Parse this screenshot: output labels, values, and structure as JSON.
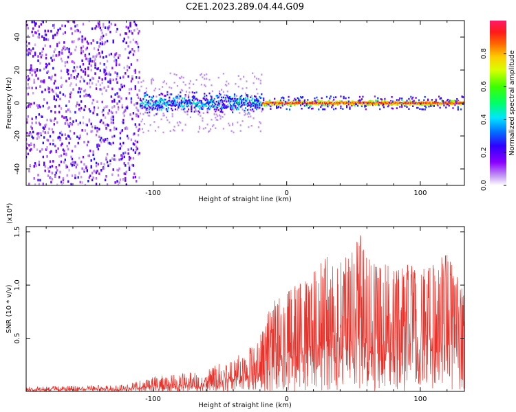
{
  "figure_title": "C2E1.2023.289.04.44.G09",
  "chart_data": [
    {
      "type": "heatmap",
      "title": "C2E1.2023.289.04.44.G09",
      "xlabel": "Height of straight line (km)",
      "ylabel": "Frequency (Hz)",
      "xlim": [
        -195,
        133
      ],
      "ylim": [
        -50,
        50
      ],
      "x_ticks": [
        -100,
        0,
        100
      ],
      "x_tick_labels": [
        "-100",
        "0",
        "100"
      ],
      "y_ticks": [
        -40,
        -20,
        0,
        20,
        40
      ],
      "y_tick_labels": [
        "-40",
        "-20",
        "0",
        "20",
        "40"
      ],
      "grid": false,
      "colorbar": {
        "label": "Normalized spectral amplitude",
        "range": [
          0,
          1
        ],
        "ticks": [
          0.0,
          0.2,
          0.4,
          0.6,
          0.8
        ],
        "tick_labels": [
          "0.0",
          "0.2",
          "0.4",
          "0.6",
          "0.8"
        ],
        "colormap": "rainbow-white-to-magenta"
      },
      "regions": [
        {
          "x_from": -195,
          "x_to": -110,
          "freq_spread_hz": 50,
          "typical_amplitude": 0.15,
          "description": "broadband noise"
        },
        {
          "x_from": -110,
          "x_to": -18,
          "freq_center_hz": 0,
          "freq_spread_hz": 8,
          "typical_amplitude": 0.35
        },
        {
          "x_from": -18,
          "x_to": 133,
          "freq_center_hz": 0,
          "freq_spread_hz": 2,
          "typical_amplitude": 0.95
        }
      ]
    },
    {
      "type": "line",
      "xlabel": "Height of straight line (km)",
      "ylabel": "SNR (10 * v/v)",
      "y_multiplier_label": "(x10⁴)",
      "xlim": [
        -195,
        133
      ],
      "ylim": [
        0,
        15500
      ],
      "x_ticks": [
        -100,
        0,
        100
      ],
      "x_tick_labels": [
        "-100",
        "0",
        "100"
      ],
      "y_ticks": [
        5000,
        10000,
        15000
      ],
      "y_tick_labels": [
        "0.5",
        "1.0",
        "1.5"
      ],
      "grid": false,
      "color": "#e8322a",
      "envelope": {
        "x": [
          -195,
          -150,
          -120,
          -100,
          -80,
          -60,
          -40,
          -30,
          -20,
          -10,
          0,
          10,
          20,
          30,
          40,
          50,
          55,
          60,
          70,
          80,
          90,
          100,
          110,
          120,
          133
        ],
        "y_max": [
          450,
          550,
          650,
          1400,
          1700,
          2100,
          3200,
          3800,
          5200,
          8800,
          9500,
          10200,
          11200,
          13000,
          12500,
          13200,
          15200,
          12800,
          12000,
          11800,
          12300,
          11500,
          12000,
          13200,
          9200
        ]
      }
    }
  ]
}
